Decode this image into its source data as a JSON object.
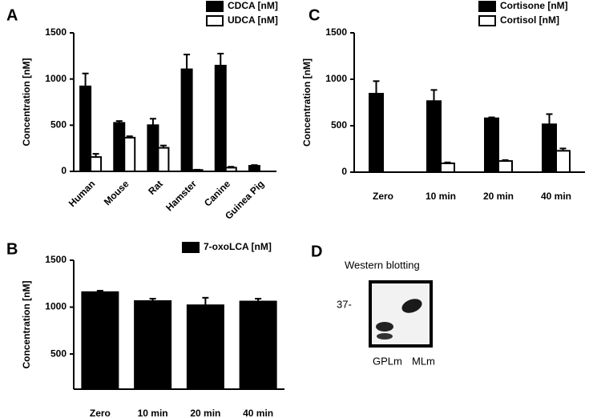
{
  "chart_data": [
    {
      "type": "bar",
      "panel": "A",
      "ylabel": "Concentration [nM]",
      "categories": [
        "Human",
        "Mouse",
        "Rat",
        "Hamster",
        "Canine",
        "Guinea Pig"
      ],
      "series": [
        {
          "name": "CDCA [nM]",
          "color": "#000000",
          "values": [
            920,
            525,
            500,
            1105,
            1145,
            60
          ],
          "errors": [
            140,
            20,
            70,
            160,
            130,
            8
          ]
        },
        {
          "name": "UDCA [nM]",
          "color": "#ffffff",
          "values": [
            155,
            365,
            255,
            15,
            40,
            null
          ],
          "errors": [
            35,
            15,
            25,
            3,
            10,
            null
          ]
        }
      ],
      "ylim": [
        0,
        1500
      ],
      "yticks": [
        0,
        500,
        1000,
        1500
      ],
      "legend": "top-right"
    },
    {
      "type": "bar",
      "panel": "B",
      "ylabel": "Concentration [nM]",
      "categories": [
        "Zero",
        "10 min",
        "20 min",
        "40 min"
      ],
      "series": [
        {
          "name": "7-oxoLCA [nM]",
          "color": "#000000",
          "values": [
            1160,
            1065,
            1020,
            1060
          ],
          "errors": [
            15,
            25,
            80,
            30
          ]
        }
      ],
      "ylim": [
        125,
        1500
      ],
      "yticks": [
        500,
        1000,
        1500
      ],
      "legend": "top-right"
    },
    {
      "type": "bar",
      "panel": "C",
      "ylabel": "Concentration [nM]",
      "categories": [
        "Zero",
        "10 min",
        "20 min",
        "40 min"
      ],
      "series": [
        {
          "name": "Cortisone [nM]",
          "color": "#000000",
          "values": [
            845,
            765,
            580,
            515
          ],
          "errors": [
            135,
            120,
            10,
            110
          ]
        },
        {
          "name": "Cortisol [nM]",
          "color": "#ffffff",
          "values": [
            null,
            95,
            120,
            230
          ],
          "errors": [
            null,
            10,
            10,
            25
          ]
        }
      ],
      "ylim": [
        0,
        1500
      ],
      "yticks": [
        0,
        500,
        1000,
        1500
      ],
      "legend": "top-right"
    }
  ],
  "blot": {
    "panel": "D",
    "title": "Western blotting",
    "marker": "37-",
    "lanes": [
      "GPLm",
      "MLm"
    ]
  }
}
